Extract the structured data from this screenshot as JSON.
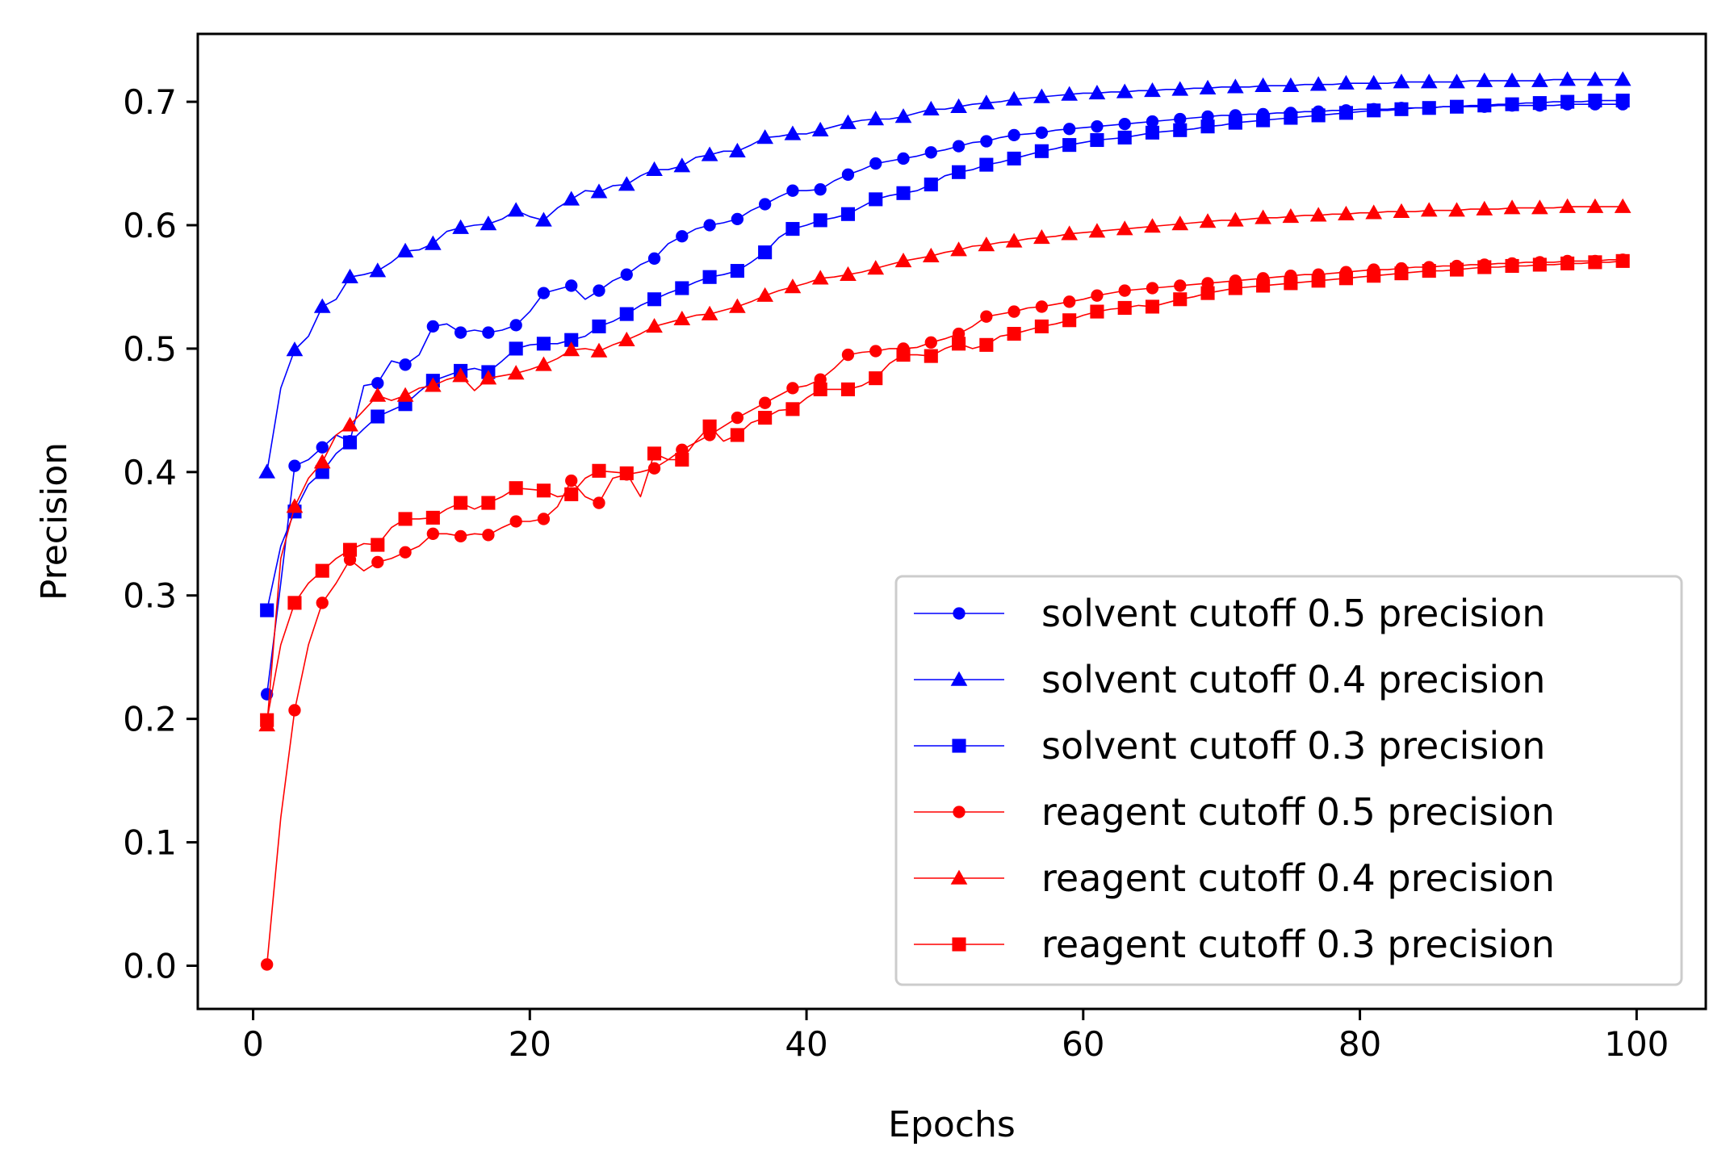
{
  "chart_data": {
    "type": "line",
    "xlabel": "Epochs",
    "ylabel": "Precision",
    "xlim": [
      -4,
      105
    ],
    "ylim": [
      -0.035,
      0.755
    ],
    "xticks": [
      0,
      20,
      40,
      60,
      80,
      100
    ],
    "yticks": [
      0.0,
      0.1,
      0.2,
      0.3,
      0.4,
      0.5,
      0.6,
      0.7
    ],
    "xtick_labels": [
      "0",
      "20",
      "40",
      "60",
      "80",
      "100"
    ],
    "ytick_labels": [
      "0.0",
      "0.1",
      "0.2",
      "0.3",
      "0.4",
      "0.5",
      "0.6",
      "0.7"
    ],
    "grid": false,
    "legend_position": "bottom-right",
    "x": [
      1,
      2,
      3,
      4,
      5,
      6,
      7,
      8,
      9,
      10,
      11,
      12,
      13,
      14,
      15,
      16,
      17,
      18,
      19,
      20,
      21,
      22,
      23,
      24,
      25,
      26,
      27,
      28,
      29,
      30,
      31,
      32,
      33,
      34,
      35,
      36,
      37,
      38,
      39,
      40,
      41,
      42,
      43,
      44,
      45,
      46,
      47,
      48,
      49,
      50,
      51,
      52,
      53,
      54,
      55,
      56,
      57,
      58,
      59,
      60,
      61,
      62,
      63,
      64,
      65,
      66,
      67,
      68,
      69,
      70,
      71,
      72,
      73,
      74,
      75,
      76,
      77,
      78,
      79,
      80,
      81,
      82,
      83,
      84,
      85,
      86,
      87,
      88,
      89,
      90,
      91,
      92,
      93,
      94,
      95,
      96,
      97,
      98,
      99
    ],
    "series": [
      {
        "name": "solvent cutoff 0.5 precision",
        "color": "#0000ff",
        "marker": "circle",
        "values": [
          0.22,
          0.31,
          0.405,
          0.41,
          0.42,
          0.43,
          0.425,
          0.47,
          0.472,
          0.49,
          0.487,
          0.495,
          0.518,
          0.52,
          0.513,
          0.515,
          0.513,
          0.515,
          0.519,
          0.53,
          0.545,
          0.548,
          0.551,
          0.54,
          0.547,
          0.555,
          0.56,
          0.568,
          0.573,
          0.585,
          0.591,
          0.597,
          0.6,
          0.602,
          0.605,
          0.612,
          0.617,
          0.623,
          0.628,
          0.628,
          0.629,
          0.636,
          0.641,
          0.645,
          0.65,
          0.652,
          0.654,
          0.656,
          0.659,
          0.661,
          0.664,
          0.667,
          0.668,
          0.671,
          0.673,
          0.674,
          0.675,
          0.677,
          0.678,
          0.679,
          0.68,
          0.681,
          0.682,
          0.683,
          0.684,
          0.685,
          0.686,
          0.687,
          0.688,
          0.689,
          0.689,
          0.69,
          0.69,
          0.691,
          0.691,
          0.692,
          0.692,
          0.693,
          0.693,
          0.694,
          0.694,
          0.694,
          0.695,
          0.695,
          0.695,
          0.696,
          0.696,
          0.696,
          0.696,
          0.697,
          0.697,
          0.697,
          0.697,
          0.697,
          0.698,
          0.698,
          0.698,
          0.698,
          0.698
        ]
      },
      {
        "name": "solvent cutoff 0.4 precision",
        "color": "#0000ff",
        "marker": "triangle",
        "values": [
          0.4,
          0.468,
          0.499,
          0.51,
          0.534,
          0.54,
          0.558,
          0.56,
          0.563,
          0.57,
          0.579,
          0.58,
          0.585,
          0.595,
          0.598,
          0.6,
          0.601,
          0.605,
          0.612,
          0.607,
          0.604,
          0.614,
          0.621,
          0.628,
          0.627,
          0.632,
          0.633,
          0.64,
          0.645,
          0.645,
          0.648,
          0.655,
          0.657,
          0.66,
          0.66,
          0.665,
          0.671,
          0.672,
          0.674,
          0.674,
          0.677,
          0.68,
          0.683,
          0.685,
          0.686,
          0.686,
          0.688,
          0.691,
          0.694,
          0.694,
          0.696,
          0.698,
          0.699,
          0.7,
          0.702,
          0.703,
          0.704,
          0.705,
          0.706,
          0.707,
          0.707,
          0.708,
          0.708,
          0.709,
          0.709,
          0.71,
          0.71,
          0.711,
          0.711,
          0.712,
          0.712,
          0.712,
          0.713,
          0.713,
          0.713,
          0.714,
          0.714,
          0.714,
          0.715,
          0.715,
          0.715,
          0.715,
          0.716,
          0.716,
          0.716,
          0.716,
          0.716,
          0.717,
          0.717,
          0.717,
          0.717,
          0.717,
          0.717,
          0.718,
          0.718,
          0.718,
          0.718,
          0.718,
          0.718
        ]
      },
      {
        "name": "solvent cutoff 0.3 precision",
        "color": "#0000ff",
        "marker": "square",
        "values": [
          0.288,
          0.34,
          0.368,
          0.39,
          0.4,
          0.415,
          0.424,
          0.435,
          0.445,
          0.45,
          0.455,
          0.465,
          0.474,
          0.478,
          0.482,
          0.484,
          0.481,
          0.49,
          0.5,
          0.503,
          0.504,
          0.504,
          0.507,
          0.51,
          0.518,
          0.522,
          0.528,
          0.535,
          0.54,
          0.545,
          0.549,
          0.554,
          0.558,
          0.56,
          0.563,
          0.57,
          0.578,
          0.59,
          0.597,
          0.6,
          0.604,
          0.606,
          0.609,
          0.615,
          0.621,
          0.624,
          0.626,
          0.628,
          0.633,
          0.64,
          0.643,
          0.645,
          0.649,
          0.651,
          0.654,
          0.657,
          0.66,
          0.662,
          0.665,
          0.667,
          0.669,
          0.67,
          0.671,
          0.673,
          0.675,
          0.676,
          0.677,
          0.678,
          0.68,
          0.681,
          0.683,
          0.684,
          0.685,
          0.686,
          0.687,
          0.688,
          0.689,
          0.69,
          0.691,
          0.692,
          0.693,
          0.693,
          0.694,
          0.695,
          0.695,
          0.696,
          0.696,
          0.697,
          0.697,
          0.698,
          0.698,
          0.699,
          0.699,
          0.7,
          0.7,
          0.7,
          0.701,
          0.701,
          0.701
        ]
      },
      {
        "name": "reagent cutoff 0.5 precision",
        "color": "#ff0000",
        "marker": "circle",
        "values": [
          0.001,
          0.12,
          0.207,
          0.26,
          0.294,
          0.31,
          0.329,
          0.32,
          0.327,
          0.33,
          0.335,
          0.34,
          0.35,
          0.35,
          0.348,
          0.35,
          0.349,
          0.355,
          0.36,
          0.36,
          0.362,
          0.372,
          0.393,
          0.38,
          0.375,
          0.395,
          0.398,
          0.4,
          0.403,
          0.41,
          0.418,
          0.424,
          0.43,
          0.437,
          0.444,
          0.45,
          0.456,
          0.462,
          0.468,
          0.47,
          0.475,
          0.484,
          0.495,
          0.497,
          0.498,
          0.5,
          0.5,
          0.501,
          0.505,
          0.508,
          0.512,
          0.518,
          0.526,
          0.528,
          0.53,
          0.533,
          0.534,
          0.536,
          0.538,
          0.54,
          0.543,
          0.545,
          0.547,
          0.548,
          0.549,
          0.55,
          0.551,
          0.552,
          0.553,
          0.554,
          0.555,
          0.556,
          0.557,
          0.558,
          0.559,
          0.56,
          0.56,
          0.561,
          0.562,
          0.563,
          0.564,
          0.564,
          0.565,
          0.566,
          0.566,
          0.567,
          0.567,
          0.568,
          0.568,
          0.569,
          0.569,
          0.57,
          0.57,
          0.57,
          0.571,
          0.571,
          0.571,
          0.572,
          0.572
        ]
      },
      {
        "name": "reagent cutoff 0.4 precision",
        "color": "#ff0000",
        "marker": "triangle",
        "values": [
          0.195,
          0.33,
          0.372,
          0.395,
          0.408,
          0.43,
          0.438,
          0.45,
          0.462,
          0.458,
          0.462,
          0.468,
          0.47,
          0.475,
          0.478,
          0.466,
          0.476,
          0.478,
          0.48,
          0.483,
          0.487,
          0.492,
          0.499,
          0.5,
          0.498,
          0.503,
          0.507,
          0.512,
          0.518,
          0.521,
          0.524,
          0.527,
          0.528,
          0.531,
          0.534,
          0.538,
          0.543,
          0.547,
          0.55,
          0.553,
          0.557,
          0.558,
          0.56,
          0.562,
          0.565,
          0.568,
          0.571,
          0.573,
          0.575,
          0.578,
          0.58,
          0.583,
          0.584,
          0.586,
          0.587,
          0.589,
          0.59,
          0.591,
          0.593,
          0.594,
          0.595,
          0.596,
          0.597,
          0.598,
          0.599,
          0.6,
          0.601,
          0.602,
          0.603,
          0.604,
          0.604,
          0.605,
          0.606,
          0.606,
          0.607,
          0.608,
          0.608,
          0.609,
          0.609,
          0.61,
          0.61,
          0.611,
          0.611,
          0.611,
          0.612,
          0.612,
          0.612,
          0.613,
          0.613,
          0.613,
          0.614,
          0.614,
          0.614,
          0.614,
          0.615,
          0.615,
          0.615,
          0.615,
          0.615
        ]
      },
      {
        "name": "reagent cutoff 0.3 precision",
        "color": "#ff0000",
        "marker": "square",
        "values": [
          0.199,
          0.26,
          0.294,
          0.31,
          0.32,
          0.33,
          0.337,
          0.342,
          0.341,
          0.355,
          0.362,
          0.362,
          0.363,
          0.37,
          0.375,
          0.37,
          0.375,
          0.38,
          0.387,
          0.386,
          0.385,
          0.38,
          0.382,
          0.395,
          0.401,
          0.4,
          0.399,
          0.38,
          0.415,
          0.41,
          0.41,
          0.425,
          0.437,
          0.425,
          0.43,
          0.44,
          0.444,
          0.45,
          0.451,
          0.46,
          0.467,
          0.467,
          0.467,
          0.47,
          0.476,
          0.488,
          0.495,
          0.495,
          0.494,
          0.5,
          0.504,
          0.5,
          0.503,
          0.51,
          0.512,
          0.515,
          0.518,
          0.52,
          0.523,
          0.527,
          0.53,
          0.532,
          0.533,
          0.535,
          0.534,
          0.537,
          0.54,
          0.542,
          0.545,
          0.547,
          0.549,
          0.55,
          0.551,
          0.552,
          0.553,
          0.554,
          0.555,
          0.556,
          0.557,
          0.558,
          0.559,
          0.56,
          0.561,
          0.562,
          0.563,
          0.563,
          0.564,
          0.565,
          0.566,
          0.566,
          0.567,
          0.567,
          0.568,
          0.568,
          0.569,
          0.569,
          0.57,
          0.57,
          0.571
        ]
      }
    ]
  }
}
